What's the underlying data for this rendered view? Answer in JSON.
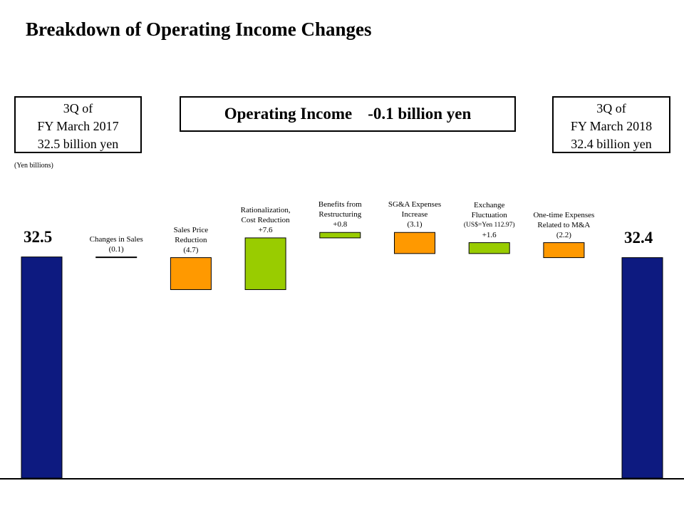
{
  "title": "Breakdown of Operating Income Changes",
  "start_box": {
    "line1": "3Q of",
    "line2": "FY March 2017",
    "line3": "32.5 billion yen"
  },
  "end_box": {
    "line1": "3Q of",
    "line2": "FY March 2018",
    "line3": "32.4 billion yen"
  },
  "summary": {
    "label": "Operating Income",
    "value": "-0.1 billion yen"
  },
  "unit_note": "(Yen billions)",
  "colors": {
    "total": "#0d1a80",
    "decrease": "#ff9900",
    "increase": "#99cc00",
    "border": "#000000"
  },
  "chart_data": {
    "type": "bar",
    "variant": "waterfall",
    "start": {
      "value": 32.5,
      "label": "32.5"
    },
    "end": {
      "value": 32.4,
      "label": "32.4"
    },
    "steps": [
      {
        "label_lines": [
          "Changes in Sales"
        ],
        "value_label": "(0.1)",
        "delta": -0.1
      },
      {
        "label_lines": [
          "Sales Price",
          "Reduction"
        ],
        "value_label": "(4.7)",
        "delta": -4.7
      },
      {
        "label_lines": [
          "Rationalization,",
          "Cost Reduction"
        ],
        "value_label": "+7.6",
        "delta": 7.6
      },
      {
        "label_lines": [
          "Benefits from",
          "Restructuring"
        ],
        "value_label": "+0.8",
        "delta": 0.8
      },
      {
        "label_lines": [
          "SG&A Expenses",
          "Increase"
        ],
        "value_label": "(3.1)",
        "delta": -3.1
      },
      {
        "label_lines": [
          "Exchange",
          "Fluctuation"
        ],
        "note": "(US$=Yen 112.97)",
        "value_label": "+1.6",
        "delta": 1.6
      },
      {
        "label_lines": [
          "One-time Expenses",
          "Related to M&A"
        ],
        "value_label": "(2.2)",
        "delta": -2.2
      }
    ]
  }
}
